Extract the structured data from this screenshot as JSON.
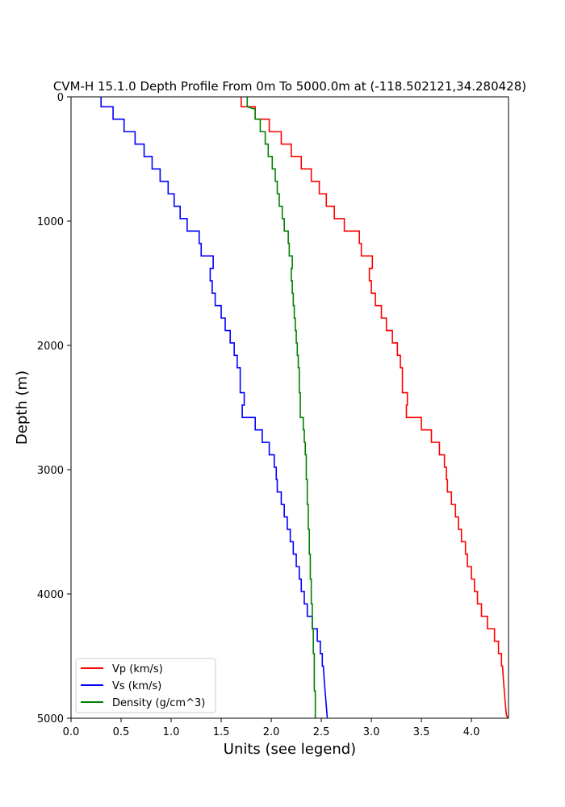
{
  "chart_data": {
    "type": "line",
    "title": "CVM-H 15.1.0 Depth Profile From 0m To 5000.0m at (-118.502121,34.280428)",
    "xlabel": "Units (see legend)",
    "ylabel": "Depth (m)",
    "xlim": [
      0,
      4.37
    ],
    "ylim": [
      5000,
      0
    ],
    "y_inverted": true,
    "x_ticks": [
      "0.0",
      "0.5",
      "1.0",
      "1.5",
      "2.0",
      "2.5",
      "3.0",
      "3.5",
      "4.0"
    ],
    "x_tick_values": [
      0,
      0.5,
      1.0,
      1.5,
      2.0,
      2.5,
      3.0,
      3.5,
      4.0
    ],
    "y_ticks": [
      "0",
      "1000",
      "2000",
      "3000",
      "4000",
      "5000"
    ],
    "y_tick_values": [
      0,
      1000,
      2000,
      3000,
      4000,
      5000
    ],
    "legend_position": "lower-left",
    "grid": false,
    "series": [
      {
        "name": "Vp (km/s)",
        "color": "#ff0000",
        "points": [
          [
            1.7,
            0
          ],
          [
            1.7,
            80
          ],
          [
            1.84,
            80
          ],
          [
            1.84,
            180
          ],
          [
            1.98,
            180
          ],
          [
            1.98,
            280
          ],
          [
            2.1,
            280
          ],
          [
            2.1,
            380
          ],
          [
            2.2,
            380
          ],
          [
            2.2,
            480
          ],
          [
            2.3,
            480
          ],
          [
            2.3,
            580
          ],
          [
            2.4,
            580
          ],
          [
            2.4,
            680
          ],
          [
            2.48,
            680
          ],
          [
            2.48,
            780
          ],
          [
            2.55,
            780
          ],
          [
            2.55,
            880
          ],
          [
            2.63,
            880
          ],
          [
            2.63,
            980
          ],
          [
            2.73,
            980
          ],
          [
            2.73,
            1080
          ],
          [
            2.88,
            1080
          ],
          [
            2.88,
            1180
          ],
          [
            2.9,
            1180
          ],
          [
            2.9,
            1280
          ],
          [
            3.01,
            1280
          ],
          [
            3.01,
            1380
          ],
          [
            2.98,
            1380
          ],
          [
            2.98,
            1480
          ],
          [
            3.0,
            1480
          ],
          [
            3.0,
            1580
          ],
          [
            3.04,
            1580
          ],
          [
            3.04,
            1680
          ],
          [
            3.1,
            1680
          ],
          [
            3.1,
            1780
          ],
          [
            3.15,
            1780
          ],
          [
            3.15,
            1880
          ],
          [
            3.21,
            1880
          ],
          [
            3.21,
            1980
          ],
          [
            3.26,
            1980
          ],
          [
            3.26,
            2080
          ],
          [
            3.29,
            2080
          ],
          [
            3.29,
            2180
          ],
          [
            3.31,
            2180
          ],
          [
            3.31,
            2280
          ],
          [
            3.31,
            2380
          ],
          [
            3.36,
            2380
          ],
          [
            3.36,
            2480
          ],
          [
            3.35,
            2480
          ],
          [
            3.35,
            2580
          ],
          [
            3.5,
            2580
          ],
          [
            3.5,
            2680
          ],
          [
            3.6,
            2680
          ],
          [
            3.6,
            2780
          ],
          [
            3.68,
            2780
          ],
          [
            3.68,
            2880
          ],
          [
            3.73,
            2880
          ],
          [
            3.73,
            2980
          ],
          [
            3.75,
            2980
          ],
          [
            3.75,
            3080
          ],
          [
            3.76,
            3080
          ],
          [
            3.76,
            3180
          ],
          [
            3.8,
            3180
          ],
          [
            3.8,
            3280
          ],
          [
            3.84,
            3280
          ],
          [
            3.84,
            3380
          ],
          [
            3.87,
            3380
          ],
          [
            3.87,
            3480
          ],
          [
            3.9,
            3480
          ],
          [
            3.9,
            3580
          ],
          [
            3.94,
            3580
          ],
          [
            3.94,
            3680
          ],
          [
            3.96,
            3680
          ],
          [
            3.96,
            3780
          ],
          [
            4.0,
            3780
          ],
          [
            4.0,
            3880
          ],
          [
            4.03,
            3880
          ],
          [
            4.03,
            3980
          ],
          [
            4.06,
            3980
          ],
          [
            4.06,
            4080
          ],
          [
            4.1,
            4080
          ],
          [
            4.1,
            4180
          ],
          [
            4.16,
            4180
          ],
          [
            4.16,
            4280
          ],
          [
            4.23,
            4280
          ],
          [
            4.23,
            4380
          ],
          [
            4.27,
            4380
          ],
          [
            4.27,
            4480
          ],
          [
            4.3,
            4480
          ],
          [
            4.3,
            4580
          ],
          [
            4.31,
            4580
          ],
          [
            4.32,
            4700
          ],
          [
            4.33,
            4800
          ],
          [
            4.34,
            4900
          ],
          [
            4.35,
            4980
          ],
          [
            4.37,
            5000
          ]
        ]
      },
      {
        "name": "Vs (km/s)",
        "color": "#0000ff",
        "points": [
          [
            0.3,
            0
          ],
          [
            0.3,
            80
          ],
          [
            0.42,
            80
          ],
          [
            0.42,
            180
          ],
          [
            0.53,
            180
          ],
          [
            0.53,
            280
          ],
          [
            0.64,
            280
          ],
          [
            0.64,
            380
          ],
          [
            0.73,
            380
          ],
          [
            0.73,
            480
          ],
          [
            0.81,
            480
          ],
          [
            0.81,
            580
          ],
          [
            0.89,
            580
          ],
          [
            0.89,
            680
          ],
          [
            0.97,
            680
          ],
          [
            0.97,
            780
          ],
          [
            1.03,
            780
          ],
          [
            1.03,
            880
          ],
          [
            1.09,
            880
          ],
          [
            1.09,
            980
          ],
          [
            1.16,
            980
          ],
          [
            1.16,
            1080
          ],
          [
            1.28,
            1080
          ],
          [
            1.28,
            1180
          ],
          [
            1.3,
            1180
          ],
          [
            1.3,
            1280
          ],
          [
            1.42,
            1280
          ],
          [
            1.42,
            1380
          ],
          [
            1.39,
            1380
          ],
          [
            1.39,
            1480
          ],
          [
            1.41,
            1480
          ],
          [
            1.41,
            1580
          ],
          [
            1.44,
            1580
          ],
          [
            1.44,
            1680
          ],
          [
            1.5,
            1680
          ],
          [
            1.5,
            1780
          ],
          [
            1.54,
            1780
          ],
          [
            1.54,
            1880
          ],
          [
            1.59,
            1880
          ],
          [
            1.59,
            1980
          ],
          [
            1.63,
            1980
          ],
          [
            1.63,
            2080
          ],
          [
            1.66,
            2080
          ],
          [
            1.66,
            2180
          ],
          [
            1.69,
            2180
          ],
          [
            1.69,
            2280
          ],
          [
            1.69,
            2380
          ],
          [
            1.73,
            2380
          ],
          [
            1.73,
            2480
          ],
          [
            1.71,
            2480
          ],
          [
            1.71,
            2580
          ],
          [
            1.84,
            2580
          ],
          [
            1.84,
            2680
          ],
          [
            1.91,
            2680
          ],
          [
            1.91,
            2780
          ],
          [
            1.98,
            2780
          ],
          [
            1.98,
            2880
          ],
          [
            2.03,
            2880
          ],
          [
            2.03,
            2980
          ],
          [
            2.05,
            2980
          ],
          [
            2.05,
            3080
          ],
          [
            2.06,
            3080
          ],
          [
            2.06,
            3180
          ],
          [
            2.1,
            3180
          ],
          [
            2.1,
            3280
          ],
          [
            2.13,
            3280
          ],
          [
            2.13,
            3380
          ],
          [
            2.16,
            3380
          ],
          [
            2.16,
            3480
          ],
          [
            2.19,
            3480
          ],
          [
            2.19,
            3580
          ],
          [
            2.22,
            3580
          ],
          [
            2.22,
            3680
          ],
          [
            2.25,
            3680
          ],
          [
            2.25,
            3780
          ],
          [
            2.28,
            3780
          ],
          [
            2.28,
            3880
          ],
          [
            2.3,
            3880
          ],
          [
            2.3,
            3980
          ],
          [
            2.33,
            3980
          ],
          [
            2.33,
            4080
          ],
          [
            2.36,
            4080
          ],
          [
            2.36,
            4180
          ],
          [
            2.41,
            4180
          ],
          [
            2.41,
            4280
          ],
          [
            2.46,
            4280
          ],
          [
            2.46,
            4380
          ],
          [
            2.49,
            4380
          ],
          [
            2.49,
            4480
          ],
          [
            2.51,
            4480
          ],
          [
            2.51,
            4580
          ],
          [
            2.52,
            4580
          ],
          [
            2.53,
            4700
          ],
          [
            2.54,
            4800
          ],
          [
            2.55,
            4900
          ],
          [
            2.56,
            5000
          ]
        ]
      },
      {
        "name": "Density (g/cm^3)",
        "color": "#008000",
        "points": [
          [
            1.76,
            0
          ],
          [
            1.76,
            80
          ],
          [
            1.84,
            100
          ],
          [
            1.84,
            180
          ],
          [
            1.89,
            180
          ],
          [
            1.89,
            280
          ],
          [
            1.94,
            280
          ],
          [
            1.94,
            380
          ],
          [
            1.97,
            380
          ],
          [
            1.97,
            480
          ],
          [
            2.01,
            480
          ],
          [
            2.01,
            580
          ],
          [
            2.04,
            580
          ],
          [
            2.04,
            680
          ],
          [
            2.06,
            680
          ],
          [
            2.06,
            780
          ],
          [
            2.08,
            780
          ],
          [
            2.08,
            880
          ],
          [
            2.11,
            880
          ],
          [
            2.11,
            980
          ],
          [
            2.13,
            980
          ],
          [
            2.13,
            1080
          ],
          [
            2.17,
            1080
          ],
          [
            2.17,
            1180
          ],
          [
            2.18,
            1180
          ],
          [
            2.18,
            1280
          ],
          [
            2.21,
            1280
          ],
          [
            2.21,
            1380
          ],
          [
            2.2,
            1380
          ],
          [
            2.2,
            1480
          ],
          [
            2.21,
            1480
          ],
          [
            2.21,
            1580
          ],
          [
            2.22,
            1580
          ],
          [
            2.22,
            1680
          ],
          [
            2.23,
            1680
          ],
          [
            2.23,
            1780
          ],
          [
            2.24,
            1780
          ],
          [
            2.24,
            1880
          ],
          [
            2.25,
            1880
          ],
          [
            2.25,
            1980
          ],
          [
            2.26,
            1980
          ],
          [
            2.26,
            2080
          ],
          [
            2.27,
            2080
          ],
          [
            2.27,
            2180
          ],
          [
            2.28,
            2180
          ],
          [
            2.28,
            2380
          ],
          [
            2.29,
            2380
          ],
          [
            2.29,
            2580
          ],
          [
            2.32,
            2580
          ],
          [
            2.32,
            2680
          ],
          [
            2.33,
            2680
          ],
          [
            2.33,
            2780
          ],
          [
            2.34,
            2780
          ],
          [
            2.34,
            2880
          ],
          [
            2.35,
            2880
          ],
          [
            2.35,
            3080
          ],
          [
            2.36,
            3080
          ],
          [
            2.36,
            3280
          ],
          [
            2.37,
            3280
          ],
          [
            2.37,
            3480
          ],
          [
            2.38,
            3480
          ],
          [
            2.38,
            3680
          ],
          [
            2.39,
            3680
          ],
          [
            2.39,
            3880
          ],
          [
            2.4,
            3880
          ],
          [
            2.4,
            4080
          ],
          [
            2.41,
            4080
          ],
          [
            2.41,
            4280
          ],
          [
            2.42,
            4280
          ],
          [
            2.42,
            4480
          ],
          [
            2.43,
            4480
          ],
          [
            2.43,
            4780
          ],
          [
            2.44,
            4780
          ],
          [
            2.44,
            5000
          ]
        ]
      }
    ]
  }
}
